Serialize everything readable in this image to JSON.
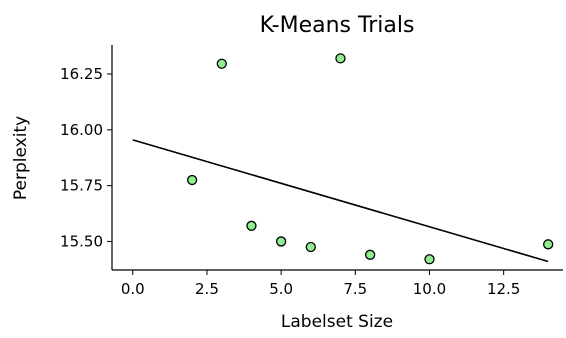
{
  "chart_data": {
    "type": "scatter",
    "title": "K-Means Trials",
    "xlabel": "Labelset Size",
    "ylabel": "Perplexity",
    "xlim": [
      -0.7,
      14.5
    ],
    "ylim": [
      15.372,
      16.38
    ],
    "xticks": [
      0.0,
      2.5,
      5.0,
      7.5,
      10.0,
      12.5
    ],
    "xtick_labels": [
      "0.0",
      "2.5",
      "5.0",
      "7.5",
      "10.0",
      "12.5"
    ],
    "yticks": [
      15.5,
      15.75,
      16.0,
      16.25
    ],
    "ytick_labels": [
      "15.50",
      "15.75",
      "16.00",
      "16.25"
    ],
    "points": [
      {
        "x": 2,
        "y": 15.775
      },
      {
        "x": 3,
        "y": 16.296
      },
      {
        "x": 4,
        "y": 15.57
      },
      {
        "x": 5,
        "y": 15.5
      },
      {
        "x": 6,
        "y": 15.475
      },
      {
        "x": 7,
        "y": 16.32
      },
      {
        "x": 8,
        "y": 15.44
      },
      {
        "x": 10,
        "y": 15.42
      },
      {
        "x": 14,
        "y": 15.487
      }
    ],
    "trend_line": {
      "x": [
        0,
        14
      ],
      "y": [
        15.955,
        15.41
      ]
    },
    "colors": {
      "marker_fill": "#90ee90",
      "marker_edge": "#000000",
      "line": "#000000"
    },
    "grid": false
  }
}
